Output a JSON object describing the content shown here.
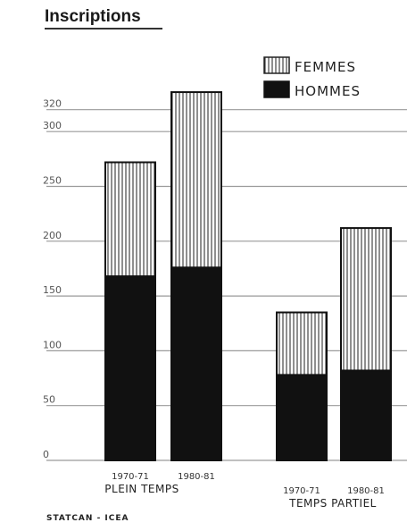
{
  "chart_data": {
    "type": "bar",
    "stacked": true,
    "title": "Inscriptions",
    "categories": [
      "1970-71",
      "1980-81",
      "1970-71",
      "1980-81"
    ],
    "groups": [
      {
        "label": "PLEIN TEMPS",
        "category_indices": [
          0,
          1
        ]
      },
      {
        "label": "TEMPS PARTIEL",
        "category_indices": [
          2,
          3
        ]
      }
    ],
    "series": [
      {
        "name": "HOMMES",
        "values": [
          168,
          176,
          78,
          82
        ],
        "color": "#111111",
        "pattern": "solid"
      },
      {
        "name": "FEMMES",
        "values": [
          104,
          160,
          57,
          130
        ],
        "color": "#ffffff",
        "pattern": "vertical-hatch"
      }
    ],
    "yticks": [
      "0",
      "50",
      "100",
      "150",
      "200",
      "250",
      "300",
      "320"
    ],
    "ylim": [
      0,
      330
    ],
    "grid": true,
    "legend_position": "top-right",
    "source": "STATCAN - ICEA"
  }
}
